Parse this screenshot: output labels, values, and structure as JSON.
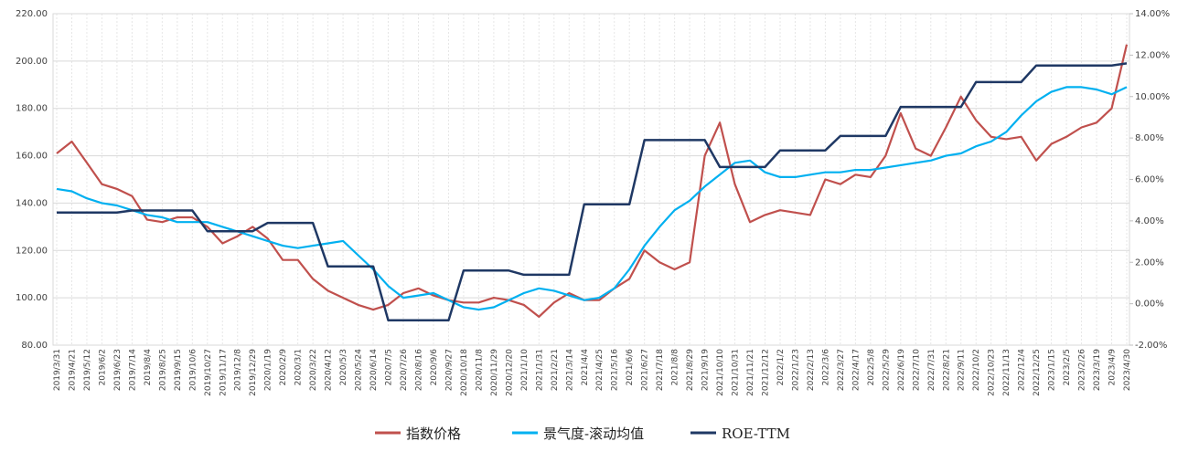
{
  "chart_data": {
    "type": "line",
    "categories": [
      "2019/3/31",
      "2019/4/21",
      "2019/5/12",
      "2019/6/2",
      "2019/6/23",
      "2019/7/14",
      "2019/8/4",
      "2019/8/25",
      "2019/9/15",
      "2019/10/6",
      "2019/10/27",
      "2019/11/17",
      "2019/12/8",
      "2019/12/29",
      "2020/1/19",
      "2020/2/9",
      "2020/3/1",
      "2020/3/22",
      "2020/4/12",
      "2020/5/3",
      "2020/5/24",
      "2020/6/14",
      "2020/7/5",
      "2020/7/26",
      "2020/8/16",
      "2020/9/6",
      "2020/9/27",
      "2020/10/18",
      "2020/11/8",
      "2020/11/29",
      "2020/12/20",
      "2021/1/10",
      "2021/1/31",
      "2021/2/21",
      "2021/3/14",
      "2021/4/4",
      "2021/4/25",
      "2021/5/16",
      "2021/6/6",
      "2021/6/27",
      "2021/7/18",
      "2021/8/8",
      "2021/8/29",
      "2021/9/19",
      "2021/10/10",
      "2021/10/31",
      "2021/11/21",
      "2021/12/12",
      "2022/1/2",
      "2022/1/23",
      "2022/2/13",
      "2022/3/6",
      "2022/3/27",
      "2022/4/17",
      "2022/5/8",
      "2022/5/29",
      "2022/6/19",
      "2022/7/10",
      "2022/7/31",
      "2022/8/21",
      "2022/9/11",
      "2022/10/2",
      "2022/10/23",
      "2022/11/13",
      "2022/12/4",
      "2022/12/25",
      "2023/1/15",
      "2023/2/5",
      "2023/2/26",
      "2023/3/19",
      "2023/4/9",
      "2023/4/30"
    ],
    "series": [
      {
        "name": "指数价格",
        "color": "#c0504d",
        "values": [
          161,
          166,
          157,
          148,
          146,
          143,
          133,
          132,
          134,
          134,
          130,
          123,
          126,
          130,
          125,
          116,
          116,
          108,
          103,
          100,
          97,
          95,
          97,
          102,
          104,
          101,
          99,
          98,
          98,
          100,
          99,
          97,
          92,
          98,
          102,
          99,
          99,
          104,
          108,
          120,
          115,
          112,
          115,
          160,
          174,
          148,
          132,
          135,
          137,
          136,
          135,
          150,
          148,
          152,
          151,
          160,
          178,
          163,
          160,
          172,
          185,
          175,
          168,
          167,
          168,
          158,
          165,
          168,
          172,
          174,
          180,
          207
        ]
      },
      {
        "name": "景气度-滚动均值",
        "color": "#00b0f0",
        "values": [
          146,
          145,
          142,
          140,
          139,
          137,
          135,
          134,
          132,
          132,
          132,
          130,
          128,
          126,
          124,
          122,
          121,
          122,
          123,
          124,
          118,
          112,
          105,
          100,
          101,
          102,
          99,
          96,
          95,
          96,
          99,
          102,
          104,
          103,
          101,
          99,
          100,
          104,
          112,
          122,
          130,
          137,
          141,
          147,
          152,
          157,
          158,
          153,
          151,
          151,
          152,
          153,
          153,
          154,
          154,
          155,
          156,
          157,
          158,
          160,
          161,
          164,
          166,
          170,
          177,
          183,
          187,
          189,
          189,
          188,
          186,
          189
        ]
      },
      {
        "name": "ROE-TTM",
        "color": "#1f3864",
        "axis": "y2",
        "values": [
          4.4,
          4.4,
          4.4,
          4.4,
          4.4,
          4.5,
          4.5,
          4.5,
          4.5,
          4.5,
          3.5,
          3.5,
          3.5,
          3.5,
          3.9,
          3.9,
          3.9,
          3.9,
          1.8,
          1.8,
          1.8,
          1.8,
          -0.8,
          -0.8,
          -0.8,
          -0.8,
          -0.8,
          1.6,
          1.6,
          1.6,
          1.6,
          1.4,
          1.4,
          1.4,
          1.4,
          4.8,
          4.8,
          4.8,
          4.8,
          7.9,
          7.9,
          7.9,
          7.9,
          7.9,
          6.6,
          6.6,
          6.6,
          6.6,
          7.4,
          7.4,
          7.4,
          7.4,
          8.1,
          8.1,
          8.1,
          8.1,
          9.5,
          9.5,
          9.5,
          9.5,
          9.5,
          10.7,
          10.7,
          10.7,
          10.7,
          11.5,
          11.5,
          11.5,
          11.5,
          11.5,
          11.5,
          11.6
        ]
      }
    ],
    "ylim": [
      80,
      220
    ],
    "yticks": [
      {
        "value": 80,
        "label": "80.00"
      },
      {
        "value": 100,
        "label": "100.00"
      },
      {
        "value": 120,
        "label": "120.00"
      },
      {
        "value": 140,
        "label": "140.00"
      },
      {
        "value": 160,
        "label": "160.00"
      },
      {
        "value": 180,
        "label": "180.00"
      },
      {
        "value": 200,
        "label": "200.00"
      },
      {
        "value": 220,
        "label": "220.00"
      }
    ],
    "y2lim": [
      -2,
      14
    ],
    "y2ticks": [
      {
        "value": -2,
        "label": "-2.00%"
      },
      {
        "value": 0,
        "label": "0.00%"
      },
      {
        "value": 2,
        "label": "2.00%"
      },
      {
        "value": 4,
        "label": "4.00%"
      },
      {
        "value": 6,
        "label": "6.00%"
      },
      {
        "value": 8,
        "label": "8.00%"
      },
      {
        "value": 10,
        "label": "10.00%"
      },
      {
        "value": 12,
        "label": "12.00%"
      },
      {
        "value": 14,
        "label": "14.00%"
      }
    ],
    "grid": true
  }
}
